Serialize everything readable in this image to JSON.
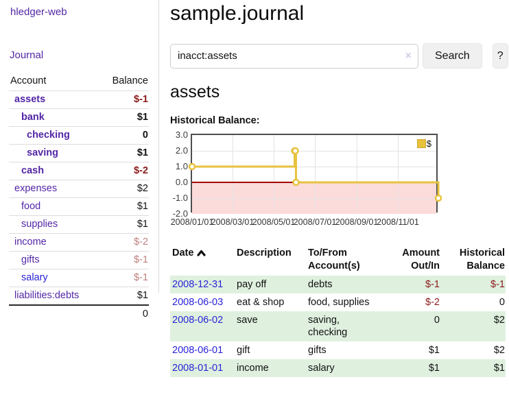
{
  "app": {
    "brand": "hledger-web",
    "nav_journal": "Journal"
  },
  "sidebar": {
    "accounts_header": {
      "account": "Account",
      "balance": "Balance"
    },
    "accounts": [
      {
        "name": "assets",
        "balance": "$-1"
      },
      {
        "name": "bank",
        "balance": "$1"
      },
      {
        "name": "checking",
        "balance": "0"
      },
      {
        "name": "saving",
        "balance": "$1"
      },
      {
        "name": "cash",
        "balance": "$-2"
      },
      {
        "name": "expenses",
        "balance": "$2"
      },
      {
        "name": "food",
        "balance": "$1"
      },
      {
        "name": "supplies",
        "balance": "$1"
      },
      {
        "name": "income",
        "balance": "$-2"
      },
      {
        "name": "gifts",
        "balance": "$-1"
      },
      {
        "name": "salary",
        "balance": "$-1"
      },
      {
        "name": "liabilities:debts",
        "balance": "$1"
      }
    ],
    "total": "0"
  },
  "header": {
    "title": "sample.journal"
  },
  "search": {
    "value": "inacct:assets",
    "clear_icon": "×",
    "button_label": "Search",
    "help_label": "?"
  },
  "account_page": {
    "title": "assets",
    "chart_label": "Historical Balance:"
  },
  "chart_data": {
    "type": "line",
    "style": "step-after",
    "x_range": [
      "2008-01-01",
      "2009-01-01"
    ],
    "ylim": [
      -2,
      3
    ],
    "y_ticks": [
      "3.0",
      "2.0",
      "1.0",
      "0.0",
      "-1.0",
      "-2.0"
    ],
    "x_ticks": [
      "2008/01/01",
      "2008/03/01",
      "2008/05/01",
      "2008/07/01",
      "2008/09/01",
      "2008/11/01"
    ],
    "series": [
      {
        "name": "$",
        "color": "#e7c23d",
        "points": [
          [
            "2008-01-01",
            1
          ],
          [
            "2008-06-01",
            2
          ],
          [
            "2008-06-02",
            2
          ],
          [
            "2008-06-03",
            0
          ],
          [
            "2008-12-31",
            -1
          ]
        ]
      }
    ],
    "grid": true,
    "legend_position": "top-right",
    "negative_region_color": "#fcdbdb",
    "zero_line_color": "#a30000"
  },
  "register_table": {
    "columns": {
      "date": "Date",
      "description": "Description",
      "accounts": "To/From Account(s)",
      "amount": "Amount Out/In",
      "balance": "Historical Balance"
    },
    "rows": [
      {
        "date": "2008-12-31",
        "description": "pay off",
        "accounts": "debts",
        "amount": "$-1",
        "balance": "$-1"
      },
      {
        "date": "2008-06-03",
        "description": "eat & shop",
        "accounts": "food, supplies",
        "amount": "$-2",
        "balance": "0"
      },
      {
        "date": "2008-06-02",
        "description": "save",
        "accounts": "saving, checking",
        "amount": "0",
        "balance": "$2"
      },
      {
        "date": "2008-06-01",
        "description": "gift",
        "accounts": "gifts",
        "amount": "$1",
        "balance": "$2"
      },
      {
        "date": "2008-01-01",
        "description": "income",
        "accounts": "salary",
        "amount": "$1",
        "balance": "$1"
      }
    ]
  }
}
